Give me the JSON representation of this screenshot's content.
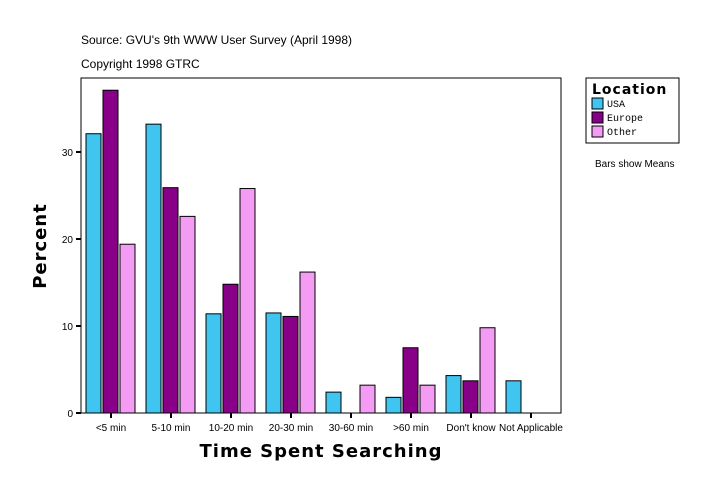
{
  "chart_data": {
    "type": "bar",
    "subtitle_lines": [
      "Source: GVU's 9th WWW User Survey (April 1998)",
      "Copyright 1998 GTRC"
    ],
    "xlabel": "Time Spent Searching",
    "ylabel": "Percent",
    "categories": [
      "<5 min",
      "5-10 min",
      "10-20 min",
      "20-30 min",
      "30-60 min",
      ">60 min",
      "Don't know",
      "Not Applicable"
    ],
    "ylim": [
      0,
      38.5
    ],
    "yticks": [
      0,
      10,
      20,
      30
    ],
    "grid": false,
    "legend": {
      "title": "Location",
      "placement": "right"
    },
    "note": "Bars show Means",
    "series": [
      {
        "name": "USA",
        "color": "#40c4f0",
        "values": [
          32.1,
          33.2,
          11.4,
          11.5,
          2.4,
          1.8,
          4.3,
          3.7
        ]
      },
      {
        "name": "Europe",
        "color": "#880088",
        "values": [
          37.1,
          25.9,
          14.8,
          11.1,
          null,
          7.5,
          3.7,
          null
        ]
      },
      {
        "name": "Other",
        "color": "#f49cf4",
        "values": [
          19.4,
          22.6,
          25.8,
          16.2,
          3.2,
          3.2,
          9.8,
          null
        ]
      }
    ]
  }
}
